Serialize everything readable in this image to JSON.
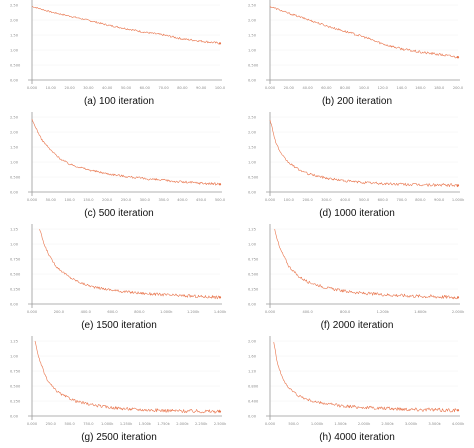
{
  "figure": {
    "colors": {
      "line": "#e8734a",
      "axis": "#9a9a9a",
      "grid": "#f0f0f0",
      "panel_bg": "#ffffff"
    }
  },
  "chart_data": [
    {
      "type": "line",
      "caption": "(a) 100 iteration",
      "xlim": [
        0,
        100
      ],
      "ylim": [
        0,
        2.7
      ],
      "x_ticks": [
        "0.000",
        "10.00",
        "20.00",
        "30.00",
        "40.00",
        "50.00",
        "60.00",
        "70.00",
        "80.00",
        "90.00",
        "100.0"
      ],
      "y_ticks": [
        "2.50",
        "2.00",
        "1.50",
        "1.00",
        "0.500",
        "0.00"
      ],
      "series": [
        {
          "points": [
            [
              0,
              2.65
            ],
            [
              10,
              2.45
            ],
            [
              20,
              2.3
            ],
            [
              30,
              2.15
            ],
            [
              40,
              1.98
            ],
            [
              50,
              1.85
            ],
            [
              60,
              1.72
            ],
            [
              70,
              1.62
            ],
            [
              80,
              1.48
            ],
            [
              90,
              1.4
            ],
            [
              100,
              1.32
            ]
          ],
          "noise": 0.04
        }
      ]
    },
    {
      "type": "line",
      "caption": "(b) 200 iteration",
      "xlim": [
        0,
        200
      ],
      "ylim": [
        0,
        2.7
      ],
      "x_ticks": [
        "0.000",
        "20.00",
        "40.00",
        "60.00",
        "80.00",
        "100.0",
        "120.0",
        "140.0",
        "160.0",
        "180.0",
        "200.0"
      ],
      "y_ticks": [
        "2.50",
        "2.00",
        "1.50",
        "1.00",
        "0.500",
        "0.00"
      ],
      "series": [
        {
          "points": [
            [
              0,
              2.65
            ],
            [
              20,
              2.4
            ],
            [
              40,
              2.18
            ],
            [
              60,
              1.95
            ],
            [
              80,
              1.75
            ],
            [
              100,
              1.55
            ],
            [
              120,
              1.3
            ],
            [
              140,
              1.12
            ],
            [
              160,
              1.0
            ],
            [
              180,
              0.92
            ],
            [
              200,
              0.82
            ]
          ],
          "noise": 0.05
        }
      ]
    },
    {
      "type": "line",
      "caption": "(c) 500 iteration",
      "xlim": [
        0,
        500
      ],
      "ylim": [
        0,
        2.7
      ],
      "x_ticks": [
        "0.000",
        "50.00",
        "100.0",
        "150.0",
        "200.0",
        "250.0",
        "300.0",
        "350.0",
        "400.0",
        "450.0",
        "500.0"
      ],
      "y_ticks": [
        "2.50",
        "2.00",
        "1.50",
        "1.00",
        "0.500",
        "0.00"
      ],
      "series": [
        {
          "points": [
            [
              0,
              2.6
            ],
            [
              25,
              1.9
            ],
            [
              50,
              1.5
            ],
            [
              75,
              1.2
            ],
            [
              100,
              1.0
            ],
            [
              150,
              0.8
            ],
            [
              200,
              0.66
            ],
            [
              250,
              0.56
            ],
            [
              300,
              0.48
            ],
            [
              350,
              0.42
            ],
            [
              400,
              0.36
            ],
            [
              450,
              0.32
            ],
            [
              500,
              0.28
            ]
          ],
          "noise": 0.05
        }
      ]
    },
    {
      "type": "line",
      "caption": "(d) 1000 iteration",
      "xlim": [
        0,
        1000
      ],
      "ylim": [
        0,
        2.7
      ],
      "x_ticks": [
        "0.000",
        "100.0",
        "200.0",
        "300.0",
        "400.0",
        "500.0",
        "600.0",
        "700.0",
        "800.0",
        "900.0",
        "1.000k"
      ],
      "y_ticks": [
        "2.50",
        "2.00",
        "1.50",
        "1.00",
        "0.500",
        "0.00"
      ],
      "series": [
        {
          "points": [
            [
              0,
              2.62
            ],
            [
              30,
              1.8
            ],
            [
              60,
              1.35
            ],
            [
              100,
              1.05
            ],
            [
              150,
              0.82
            ],
            [
              200,
              0.66
            ],
            [
              300,
              0.5
            ],
            [
              400,
              0.4
            ],
            [
              500,
              0.34
            ],
            [
              600,
              0.3
            ],
            [
              700,
              0.28
            ],
            [
              800,
              0.26
            ],
            [
              900,
              0.25
            ],
            [
              1000,
              0.24
            ]
          ],
          "noise": 0.06
        }
      ]
    },
    {
      "type": "line",
      "caption": "(e) 1500 iteration",
      "xlim": [
        0,
        1500
      ],
      "ylim": [
        0,
        1.35
      ],
      "x_ticks": [
        "0.000",
        "200.0",
        "400.0",
        "600.0",
        "800.0",
        "1.000k",
        "1.200k",
        "1.400k"
      ],
      "y_ticks": [
        "1.25",
        "1.00",
        "0.750",
        "0.500",
        "0.250",
        "0.00"
      ],
      "series": [
        {
          "points": [
            [
              60,
              1.35
            ],
            [
              100,
              1.05
            ],
            [
              150,
              0.82
            ],
            [
              200,
              0.66
            ],
            [
              300,
              0.48
            ],
            [
              400,
              0.37
            ],
            [
              500,
              0.3
            ],
            [
              700,
              0.23
            ],
            [
              900,
              0.19
            ],
            [
              1100,
              0.16
            ],
            [
              1300,
              0.14
            ],
            [
              1500,
              0.12
            ]
          ],
          "noise": 0.03
        }
      ]
    },
    {
      "type": "line",
      "caption": "(f) 2000 iteration",
      "xlim": [
        0,
        2000
      ],
      "ylim": [
        0,
        1.35
      ],
      "x_ticks": [
        "0.000",
        "400.0",
        "800.0",
        "1.200k",
        "1.600k",
        "2.000k"
      ],
      "y_ticks": [
        "1.25",
        "1.00",
        "0.750",
        "0.500",
        "0.250",
        "0.00"
      ],
      "series": [
        {
          "points": [
            [
              50,
              1.35
            ],
            [
              100,
              1.02
            ],
            [
              200,
              0.68
            ],
            [
              300,
              0.5
            ],
            [
              400,
              0.4
            ],
            [
              600,
              0.29
            ],
            [
              800,
              0.23
            ],
            [
              1000,
              0.19
            ],
            [
              1300,
              0.16
            ],
            [
              1600,
              0.14
            ],
            [
              2000,
              0.12
            ]
          ],
          "noise": 0.035
        }
      ]
    },
    {
      "type": "line",
      "caption": "(g) 2500 iteration",
      "xlim": [
        0,
        2500
      ],
      "ylim": [
        0,
        1.35
      ],
      "x_ticks": [
        "0.000",
        "250.0",
        "500.0",
        "750.0",
        "1.000k",
        "1.250k",
        "1.500k",
        "1.750k",
        "2.000k",
        "2.250k",
        "2.500k"
      ],
      "y_ticks": [
        "1.25",
        "1.00",
        "0.750",
        "0.500",
        "0.250",
        "0.00"
      ],
      "series": [
        {
          "points": [
            [
              40,
              1.35
            ],
            [
              100,
              1.0
            ],
            [
              200,
              0.65
            ],
            [
              300,
              0.48
            ],
            [
              400,
              0.38
            ],
            [
              600,
              0.26
            ],
            [
              800,
              0.2
            ],
            [
              1000,
              0.16
            ],
            [
              1250,
              0.13
            ],
            [
              1500,
              0.11
            ],
            [
              2000,
              0.09
            ],
            [
              2500,
              0.08
            ]
          ],
          "noise": 0.035
        }
      ]
    },
    {
      "type": "line",
      "caption": "(h) 4000 iteration",
      "xlim": [
        0,
        4000
      ],
      "ylim": [
        0,
        2.2
      ],
      "x_ticks": [
        "0.000",
        "500.0",
        "1.000k",
        "1.500k",
        "2.000k",
        "2.500k",
        "3.000k",
        "3.500k",
        "4.000k"
      ],
      "y_ticks": [
        "2.00",
        "1.60",
        "1.20",
        "0.800",
        "0.400",
        "0.00"
      ],
      "series": [
        {
          "points": [
            [
              80,
              2.2
            ],
            [
              150,
              1.6
            ],
            [
              250,
              1.15
            ],
            [
              400,
              0.82
            ],
            [
              600,
              0.6
            ],
            [
              800,
              0.48
            ],
            [
              1000,
              0.4
            ],
            [
              1500,
              0.3
            ],
            [
              2000,
              0.25
            ],
            [
              2500,
              0.22
            ],
            [
              3000,
              0.2
            ],
            [
              3500,
              0.18
            ],
            [
              4000,
              0.17
            ]
          ],
          "noise": 0.06
        }
      ]
    }
  ]
}
